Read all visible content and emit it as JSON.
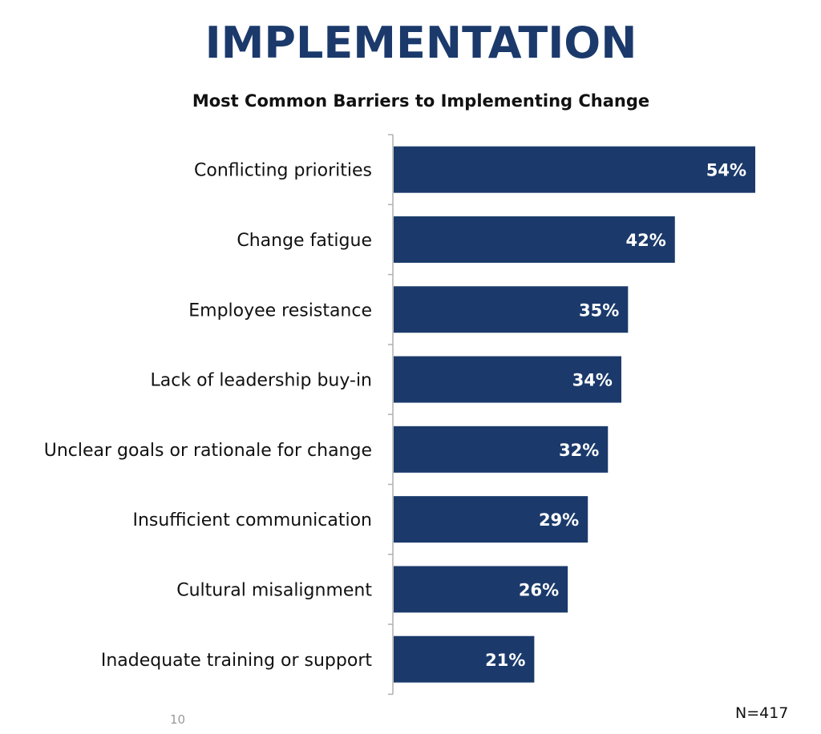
{
  "page": {
    "title": "IMPLEMENTATION",
    "page_number": "10",
    "sample_size": "N=417"
  },
  "colors": {
    "title": "#1b3a6b",
    "bar": "#1b3a6b",
    "bar_label": "#ffffff",
    "axis": "#b0b0b0"
  },
  "chart_data": {
    "type": "bar",
    "orientation": "horizontal",
    "title": "Most Common Barriers to Implementing Change",
    "xlabel": "",
    "ylabel": "",
    "categories": [
      "Conflicting priorities",
      "Change fatigue",
      "Employee resistance",
      "Lack of leadership buy-in",
      "Unclear goals or rationale for change",
      "Insufficient communication",
      "Cultural misalignment",
      "Inadequate training or support"
    ],
    "values": [
      54,
      42,
      35,
      34,
      32,
      29,
      26,
      21
    ],
    "value_labels": [
      "54%",
      "42%",
      "35%",
      "34%",
      "32%",
      "29%",
      "26%",
      "21%"
    ],
    "xlim": [
      0,
      54
    ],
    "grid": false,
    "legend": "none"
  }
}
